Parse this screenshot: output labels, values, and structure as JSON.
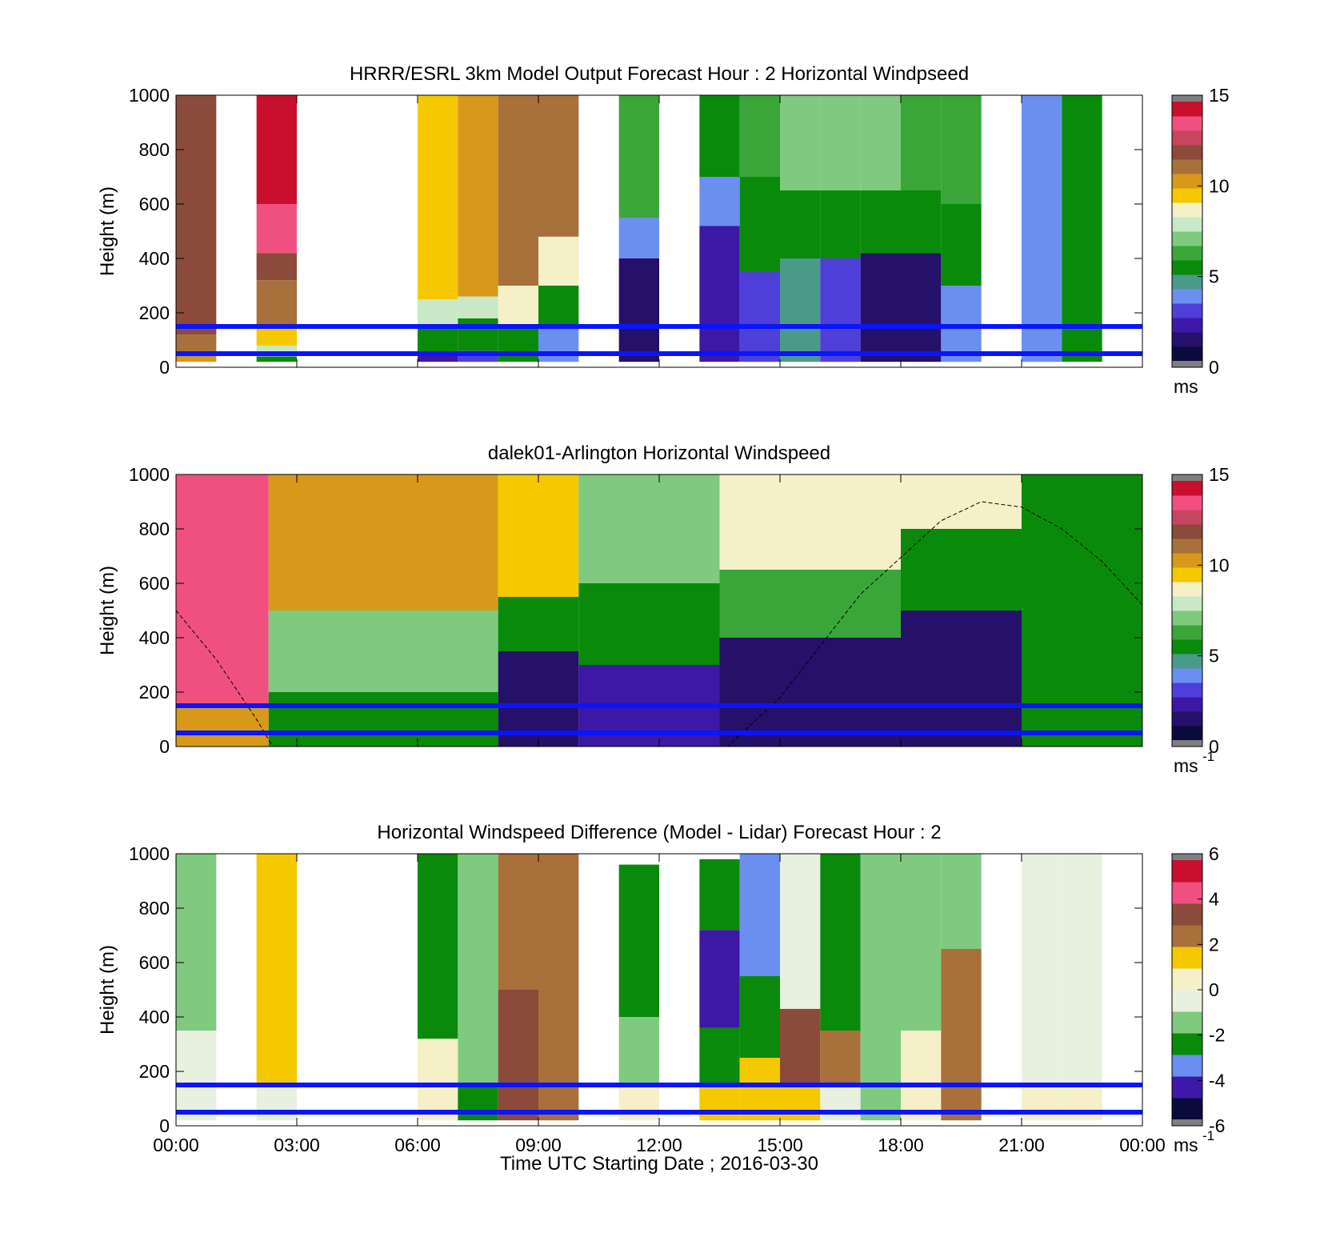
{
  "figure": {
    "xlabel": "Time UTC  Starting Date ; 2016-03-30",
    "x_ticks": [
      "00:00",
      "03:00",
      "06:00",
      "09:00",
      "12:00",
      "15:00",
      "18:00",
      "21:00",
      "00:00"
    ]
  },
  "colors": {
    "blue_lines": "#0a14ff",
    "nodata": "#ffffff",
    "speed_colormap": [
      "#7f7f7f",
      "#0a0a3c",
      "#25106a",
      "#3d18a6",
      "#4d3fd8",
      "#6b8ff0",
      "#4a9a8a",
      "#0a8a0a",
      "#3aa63a",
      "#7fca7f",
      "#c8e8c8",
      "#f5f0c8",
      "#f5c800",
      "#d8981a",
      "#a8703a",
      "#8c4a3a",
      "#c84560",
      "#f05080",
      "#c8102e",
      "#7f7f7f"
    ],
    "diff_colormap": [
      "#7f7f7f",
      "#0a0a3c",
      "#3d18a6",
      "#6b8ff0",
      "#0a8a0a",
      "#7fca7f",
      "#e8f0e0",
      "#f5f0c8",
      "#f5c800",
      "#a8703a",
      "#8c4a3a",
      "#f05080",
      "#c8102e",
      "#7f7f7f"
    ]
  },
  "chart_data": [
    {
      "type": "heatmap",
      "title": "HRRR/ESRL 3km Model Output   Forecast Hour : 2 Horizontal Windpseed",
      "ylabel": "Height (m)",
      "ylim": [
        0,
        1000
      ],
      "y_ticks": [
        "0",
        "200",
        "400",
        "600",
        "800",
        "1000"
      ],
      "colorbar": {
        "ticks": [
          "0",
          "5",
          "10",
          "15"
        ],
        "range": [
          0,
          15
        ],
        "unit": "ms"
      },
      "horizontal_lines_m": [
        50,
        150
      ],
      "columns": [
        {
          "hour": 0.5,
          "wind_speed": [
            {
              "from": 20,
              "to": 40,
              "v": 10.5
            },
            {
              "from": 40,
              "to": 120,
              "v": 11.5
            },
            {
              "from": 120,
              "to": 1000,
              "v": 12
            }
          ]
        },
        {
          "hour": 2.5,
          "wind_speed": [
            {
              "from": 20,
              "to": 40,
              "v": 5
            },
            {
              "from": 40,
              "to": 80,
              "v": 8
            },
            {
              "from": 80,
              "to": 150,
              "v": 9.5
            },
            {
              "from": 150,
              "to": 320,
              "v": 11
            },
            {
              "from": 320,
              "to": 420,
              "v": 12
            },
            {
              "from": 420,
              "to": 600,
              "v": 13.5
            },
            {
              "from": 600,
              "to": 1000,
              "v": 14.5
            }
          ]
        },
        {
          "hour": 6.5,
          "wind_speed": [
            {
              "from": 20,
              "to": 50,
              "v": 2
            },
            {
              "from": 50,
              "to": 150,
              "v": 5
            },
            {
              "from": 150,
              "to": 250,
              "v": 8
            },
            {
              "from": 250,
              "to": 1000,
              "v": 9.5
            }
          ]
        },
        {
          "hour": 7.5,
          "wind_speed": [
            {
              "from": 20,
              "to": 60,
              "v": 3
            },
            {
              "from": 60,
              "to": 180,
              "v": 5
            },
            {
              "from": 180,
              "to": 260,
              "v": 8
            },
            {
              "from": 260,
              "to": 1000,
              "v": 10.5
            }
          ]
        },
        {
          "hour": 8.5,
          "wind_speed": [
            {
              "from": 20,
              "to": 150,
              "v": 5
            },
            {
              "from": 150,
              "to": 300,
              "v": 9
            },
            {
              "from": 300,
              "to": 1000,
              "v": 11.5
            }
          ]
        },
        {
          "hour": 9.5,
          "wind_speed": [
            {
              "from": 20,
              "to": 150,
              "v": 3.5
            },
            {
              "from": 150,
              "to": 300,
              "v": 5.5
            },
            {
              "from": 300,
              "to": 480,
              "v": 8.5
            },
            {
              "from": 480,
              "to": 1000,
              "v": 11
            }
          ]
        },
        {
          "hour": 11.5,
          "wind_speed": [
            {
              "from": 20,
              "to": 400,
              "v": 1.5
            },
            {
              "from": 400,
              "to": 550,
              "v": 4
            },
            {
              "from": 550,
              "to": 1000,
              "v": 6
            }
          ]
        },
        {
          "hour": 13.5,
          "wind_speed": [
            {
              "from": 20,
              "to": 520,
              "v": 2
            },
            {
              "from": 520,
              "to": 700,
              "v": 3.5
            },
            {
              "from": 700,
              "to": 1000,
              "v": 5
            }
          ]
        },
        {
          "hour": 14.5,
          "wind_speed": [
            {
              "from": 20,
              "to": 350,
              "v": 2.5
            },
            {
              "from": 350,
              "to": 700,
              "v": 5
            },
            {
              "from": 700,
              "to": 1000,
              "v": 6
            }
          ]
        },
        {
          "hour": 15.5,
          "wind_speed": [
            {
              "from": 20,
              "to": 400,
              "v": 4.5
            },
            {
              "from": 400,
              "to": 650,
              "v": 5
            },
            {
              "from": 650,
              "to": 1000,
              "v": 7
            }
          ]
        },
        {
          "hour": 16.5,
          "wind_speed": [
            {
              "from": 20,
              "to": 400,
              "v": 3
            },
            {
              "from": 400,
              "to": 650,
              "v": 5
            },
            {
              "from": 650,
              "to": 1000,
              "v": 7
            }
          ]
        },
        {
          "hour": 17.5,
          "wind_speed": [
            {
              "from": 20,
              "to": 420,
              "v": 1.5
            },
            {
              "from": 420,
              "to": 650,
              "v": 5
            },
            {
              "from": 650,
              "to": 1000,
              "v": 7
            }
          ]
        },
        {
          "hour": 18.5,
          "wind_speed": [
            {
              "from": 20,
              "to": 420,
              "v": 1.5
            },
            {
              "from": 420,
              "to": 650,
              "v": 5
            },
            {
              "from": 650,
              "to": 1000,
              "v": 6.5
            }
          ]
        },
        {
          "hour": 19.5,
          "wind_speed": [
            {
              "from": 20,
              "to": 300,
              "v": 4
            },
            {
              "from": 300,
              "to": 600,
              "v": 5
            },
            {
              "from": 600,
              "to": 1000,
              "v": 6
            }
          ]
        },
        {
          "hour": 21.5,
          "wind_speed": [
            {
              "from": 20,
              "to": 250,
              "v": 3.5
            },
            {
              "from": 250,
              "to": 1000,
              "v": 4
            }
          ]
        },
        {
          "hour": 22.5,
          "wind_speed": [
            {
              "from": 20,
              "to": 1000,
              "v": 5
            }
          ]
        }
      ]
    },
    {
      "type": "heatmap",
      "title": "dalek01-Arlington  Horizontal Windspeed",
      "ylabel": "Height (m)",
      "ylim": [
        0,
        1000
      ],
      "y_ticks": [
        "0",
        "200",
        "400",
        "600",
        "800",
        "1000"
      ],
      "colorbar": {
        "ticks": [
          "0",
          "5",
          "10",
          "15"
        ],
        "range": [
          0,
          15
        ],
        "unit": "ms",
        "unit_exponent": "-1"
      },
      "horizontal_lines_m": [
        50,
        150
      ],
      "dashed_curve": {
        "hours": [
          0,
          1,
          2,
          2.4,
          13.7,
          15,
          17,
          19,
          20,
          21,
          22,
          23,
          24
        ],
        "heights_m": [
          500,
          320,
          100,
          0,
          0,
          180,
          560,
          830,
          900,
          880,
          800,
          680,
          520
        ]
      },
      "layers": [
        {
          "from_hour": 0,
          "to_hour": 2.3,
          "wind_speed": [
            {
              "from": 0,
              "to": 150,
              "v": 10
            },
            {
              "from": 150,
              "to": 1000,
              "v": 14
            }
          ]
        },
        {
          "from_hour": 2.3,
          "to_hour": 8,
          "wind_speed": [
            {
              "from": 0,
              "to": 200,
              "v": 5
            },
            {
              "from": 200,
              "to": 500,
              "v": 7
            },
            {
              "from": 500,
              "to": 1000,
              "v": 10
            }
          ]
        },
        {
          "from_hour": 8,
          "to_hour": 10,
          "wind_speed": [
            {
              "from": 0,
              "to": 350,
              "v": 1.5
            },
            {
              "from": 350,
              "to": 550,
              "v": 5
            },
            {
              "from": 550,
              "to": 1000,
              "v": 9.5
            }
          ]
        },
        {
          "from_hour": 10,
          "to_hour": 13.5,
          "wind_speed": [
            {
              "from": 0,
              "to": 300,
              "v": 2
            },
            {
              "from": 300,
              "to": 600,
              "v": 5
            },
            {
              "from": 600,
              "to": 1000,
              "v": 7
            }
          ]
        },
        {
          "from_hour": 13.5,
          "to_hour": 18,
          "wind_speed": [
            {
              "from": 0,
              "to": 400,
              "v": 1.5
            },
            {
              "from": 400,
              "to": 650,
              "v": 6
            },
            {
              "from": 650,
              "to": 1000,
              "v": 9
            }
          ]
        },
        {
          "from_hour": 18,
          "to_hour": 21,
          "wind_speed": [
            {
              "from": 0,
              "to": 500,
              "v": 1.5
            },
            {
              "from": 500,
              "to": 800,
              "v": 5
            },
            {
              "from": 800,
              "to": 1000,
              "v": 9
            }
          ]
        },
        {
          "from_hour": 21,
          "to_hour": 24,
          "wind_speed": [
            {
              "from": 0,
              "to": 1000,
              "v": 5
            }
          ]
        }
      ]
    },
    {
      "type": "heatmap",
      "title": "Horizontal Windspeed Difference (Model - Lidar) Forecast Hour : 2",
      "ylabel": "Height (m)",
      "ylim": [
        0,
        1000
      ],
      "y_ticks": [
        "0",
        "200",
        "400",
        "600",
        "800",
        "1000"
      ],
      "colorbar": {
        "ticks": [
          "-6",
          "-4",
          "-2",
          "0",
          "2",
          "4",
          "6"
        ],
        "range": [
          -6,
          6
        ],
        "unit": "ms",
        "unit_exponent": "-1"
      },
      "horizontal_lines_m": [
        50,
        150
      ],
      "columns": [
        {
          "hour": 0.5,
          "difference": [
            {
              "from": 20,
              "to": 350,
              "v": -0.5
            },
            {
              "from": 350,
              "to": 1000,
              "v": -1.5
            }
          ]
        },
        {
          "hour": 2.5,
          "difference": [
            {
              "from": 20,
              "to": 150,
              "v": -1
            },
            {
              "from": 150,
              "to": 1000,
              "v": 1.5
            }
          ]
        },
        {
          "hour": 6.5,
          "difference": [
            {
              "from": 20,
              "to": 320,
              "v": 0.5
            },
            {
              "from": 320,
              "to": 1000,
              "v": -3
            }
          ]
        },
        {
          "hour": 7.5,
          "difference": [
            {
              "from": 20,
              "to": 150,
              "v": -2.5
            },
            {
              "from": 150,
              "to": 1000,
              "v": -1.5
            }
          ]
        },
        {
          "hour": 8.5,
          "difference": [
            {
              "from": 20,
              "to": 500,
              "v": 3
            },
            {
              "from": 500,
              "to": 1000,
              "v": 2
            }
          ]
        },
        {
          "hour": 9.5,
          "difference": [
            {
              "from": 20,
              "to": 1000,
              "v": 2.5
            }
          ]
        },
        {
          "hour": 11.5,
          "difference": [
            {
              "from": 20,
              "to": 150,
              "v": 0.5
            },
            {
              "from": 150,
              "to": 400,
              "v": -1.5
            },
            {
              "from": 400,
              "to": 960,
              "v": -3
            }
          ]
        },
        {
          "hour": 13.5,
          "difference": [
            {
              "from": 20,
              "to": 150,
              "v": 1
            },
            {
              "from": 150,
              "to": 360,
              "v": -3
            },
            {
              "from": 360,
              "to": 720,
              "v": -5
            },
            {
              "from": 720,
              "to": 980,
              "v": -3
            }
          ]
        },
        {
          "hour": 14.5,
          "difference": [
            {
              "from": 20,
              "to": 250,
              "v": 1
            },
            {
              "from": 250,
              "to": 550,
              "v": -2.5
            },
            {
              "from": 550,
              "to": 1000,
              "v": -3.5
            }
          ]
        },
        {
          "hour": 15.5,
          "difference": [
            {
              "from": 20,
              "to": 150,
              "v": 1.5
            },
            {
              "from": 150,
              "to": 430,
              "v": 3
            },
            {
              "from": 430,
              "to": 1000,
              "v": -1
            }
          ]
        },
        {
          "hour": 16.5,
          "difference": [
            {
              "from": 20,
              "to": 150,
              "v": -1
            },
            {
              "from": 150,
              "to": 350,
              "v": 2
            },
            {
              "from": 350,
              "to": 1000,
              "v": -2.5
            }
          ]
        },
        {
          "hour": 17.5,
          "difference": [
            {
              "from": 20,
              "to": 1000,
              "v": -1.5
            }
          ]
        },
        {
          "hour": 18.5,
          "difference": [
            {
              "from": 20,
              "to": 350,
              "v": 0.5
            },
            {
              "from": 350,
              "to": 1000,
              "v": -1.5
            }
          ]
        },
        {
          "hour": 19.5,
          "difference": [
            {
              "from": 20,
              "to": 650,
              "v": 2
            },
            {
              "from": 650,
              "to": 1000,
              "v": -2
            }
          ]
        },
        {
          "hour": 21.5,
          "difference": [
            {
              "from": 20,
              "to": 150,
              "v": 0.5
            },
            {
              "from": 150,
              "to": 1000,
              "v": -1
            }
          ]
        },
        {
          "hour": 22.5,
          "difference": [
            {
              "from": 20,
              "to": 150,
              "v": 0
            },
            {
              "from": 150,
              "to": 1000,
              "v": -1
            }
          ]
        }
      ]
    }
  ]
}
